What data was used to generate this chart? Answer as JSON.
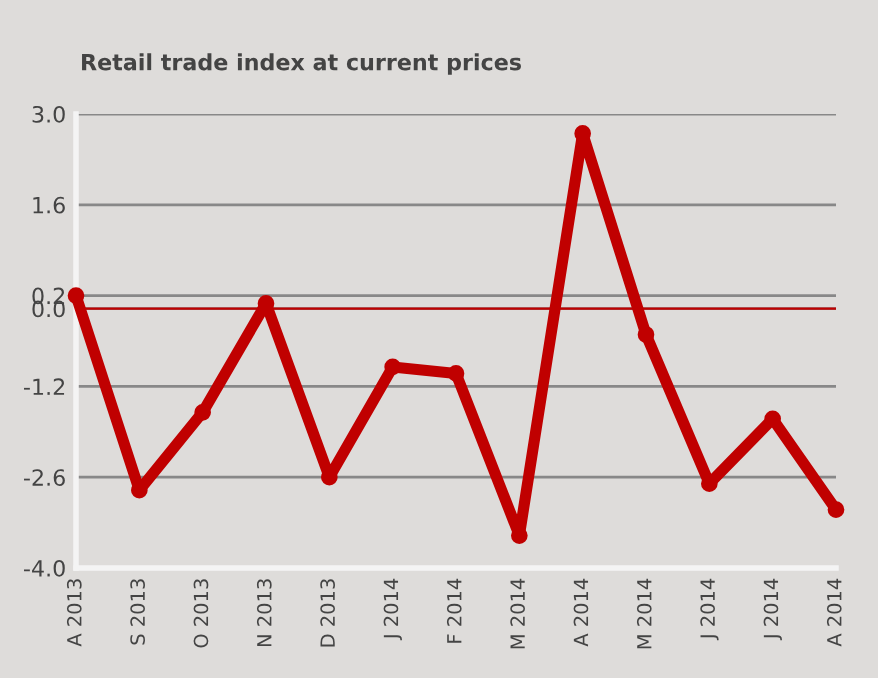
{
  "chart_data": {
    "type": "line",
    "title": "Retail trade index at current prices",
    "categories": [
      "A 2013",
      "S 2013",
      "O 2013",
      "N 2013",
      "D 2013",
      "J 2014",
      "F 2014",
      "M 2014",
      "A 2014",
      "M 2014",
      "J 2014",
      "J 2014",
      "A 2014"
    ],
    "series": [
      {
        "color": "#c00000",
        "values": [
          0.2,
          -2.8,
          -1.6,
          0.08,
          -2.6,
          -0.9,
          -1.0,
          -3.5,
          2.7,
          -0.4,
          -2.7,
          -1.7,
          -3.1
        ]
      }
    ],
    "ylim": [
      -4.0,
      3.0
    ],
    "yticks": [
      {
        "value": -4.0,
        "label": "-4.0"
      },
      {
        "value": -2.6,
        "label": "-2.6"
      },
      {
        "value": -1.2,
        "label": "-1.2"
      },
      {
        "value": 0.0,
        "label": "0.0"
      },
      {
        "value": 0.2,
        "label": "0.2"
      },
      {
        "value": 1.6,
        "label": "1.6"
      },
      {
        "value": 3.0,
        "label": "3.0"
      }
    ],
    "ref_lines": [
      {
        "axis": "y",
        "value": 0.0,
        "color": "#c00000"
      }
    ],
    "grid": "y",
    "marker": "circle",
    "line_style": "solid",
    "legend": false
  }
}
